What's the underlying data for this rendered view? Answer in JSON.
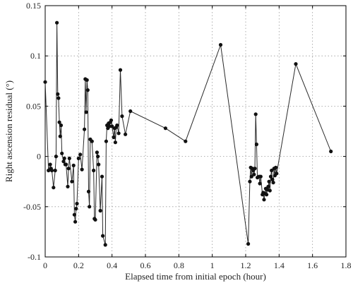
{
  "chart_data": {
    "type": "line",
    "title": "",
    "xlabel": "Elapsed time from initial epoch (hour)",
    "ylabel": "Right ascension residual (°)",
    "xlim": [
      0,
      1.8
    ],
    "ylim": [
      -0.1,
      0.15
    ],
    "grid": true,
    "legend": "none",
    "colors": {
      "line": "#2a2a2a",
      "marker": "#111111",
      "grid": "#9a9a9a",
      "axis": "#000000"
    },
    "x_ticks": [
      {
        "value": 0,
        "label": "0"
      },
      {
        "value": 0.2,
        "label": "0.2"
      },
      {
        "value": 0.4,
        "label": "0.4"
      },
      {
        "value": 0.6,
        "label": "0.6"
      },
      {
        "value": 0.8,
        "label": "0.8"
      },
      {
        "value": 1.0,
        "label": "1"
      },
      {
        "value": 1.2,
        "label": "1.2"
      },
      {
        "value": 1.4,
        "label": "1.4"
      },
      {
        "value": 1.6,
        "label": "1.6"
      },
      {
        "value": 1.8,
        "label": "1.8"
      }
    ],
    "y_ticks": [
      {
        "value": -0.1,
        "label": "-0.1"
      },
      {
        "value": -0.05,
        "label": "-0.05"
      },
      {
        "value": 0,
        "label": "0"
      },
      {
        "value": 0.05,
        "label": "0.05"
      },
      {
        "value": 0.1,
        "label": "0.1"
      },
      {
        "value": 0.15,
        "label": "0.15"
      }
    ],
    "series": [
      {
        "x": [
          0.0,
          0.02,
          0.03,
          0.035,
          0.04,
          0.05,
          0.06,
          0.065,
          0.07,
          0.075,
          0.08,
          0.085,
          0.09,
          0.095,
          0.1,
          0.11,
          0.115,
          0.12,
          0.125,
          0.135,
          0.14,
          0.145,
          0.16,
          0.17,
          0.175,
          0.18,
          0.185,
          0.19,
          0.2,
          0.21,
          0.22,
          0.235,
          0.24,
          0.245,
          0.25,
          0.255,
          0.26,
          0.265,
          0.27,
          0.28,
          0.29,
          0.295,
          0.3,
          0.31,
          0.315,
          0.32,
          0.33,
          0.34,
          0.345,
          0.36,
          0.365,
          0.37,
          0.375,
          0.38,
          0.385,
          0.39,
          0.395,
          0.4,
          0.41,
          0.415,
          0.42,
          0.425,
          0.43,
          0.44,
          0.45,
          0.46,
          0.48,
          0.51,
          0.72,
          0.84,
          1.05,
          1.215,
          1.225,
          1.23,
          1.235,
          1.24,
          1.245,
          1.25,
          1.255,
          1.26,
          1.265,
          1.27,
          1.28,
          1.285,
          1.29,
          1.3,
          1.305,
          1.31,
          1.315,
          1.32,
          1.325,
          1.33,
          1.335,
          1.34,
          1.345,
          1.35,
          1.355,
          1.36,
          1.365,
          1.37,
          1.375,
          1.38,
          1.385,
          1.5,
          1.71
        ],
        "y": [
          0.074,
          -0.014,
          -0.008,
          -0.012,
          -0.014,
          -0.031,
          -0.014,
          0.0,
          0.133,
          0.062,
          0.058,
          0.034,
          0.02,
          0.031,
          0.003,
          -0.005,
          -0.002,
          -0.008,
          -0.008,
          -0.03,
          -0.012,
          -0.002,
          -0.025,
          -0.009,
          -0.058,
          -0.065,
          -0.052,
          -0.047,
          -0.002,
          0.002,
          -0.013,
          0.027,
          0.077,
          0.044,
          0.076,
          0.066,
          -0.035,
          -0.05,
          0.017,
          0.015,
          -0.014,
          -0.062,
          -0.063,
          0.004,
          0.0,
          -0.008,
          -0.054,
          -0.02,
          -0.079,
          -0.088,
          0.015,
          0.031,
          0.028,
          0.033,
          0.03,
          0.034,
          0.036,
          0.03,
          0.019,
          0.028,
          0.014,
          0.029,
          0.031,
          0.023,
          0.086,
          0.04,
          0.022,
          0.045,
          0.028,
          0.015,
          0.111,
          -0.087,
          -0.025,
          -0.011,
          -0.02,
          -0.012,
          -0.014,
          -0.018,
          -0.012,
          0.042,
          0.012,
          -0.021,
          -0.02,
          -0.027,
          -0.02,
          -0.038,
          -0.036,
          -0.043,
          -0.037,
          -0.032,
          -0.038,
          -0.033,
          -0.03,
          -0.025,
          -0.034,
          -0.02,
          -0.014,
          -0.023,
          -0.026,
          -0.012,
          -0.019,
          -0.011,
          -0.017,
          0.092,
          0.005
        ]
      }
    ]
  }
}
